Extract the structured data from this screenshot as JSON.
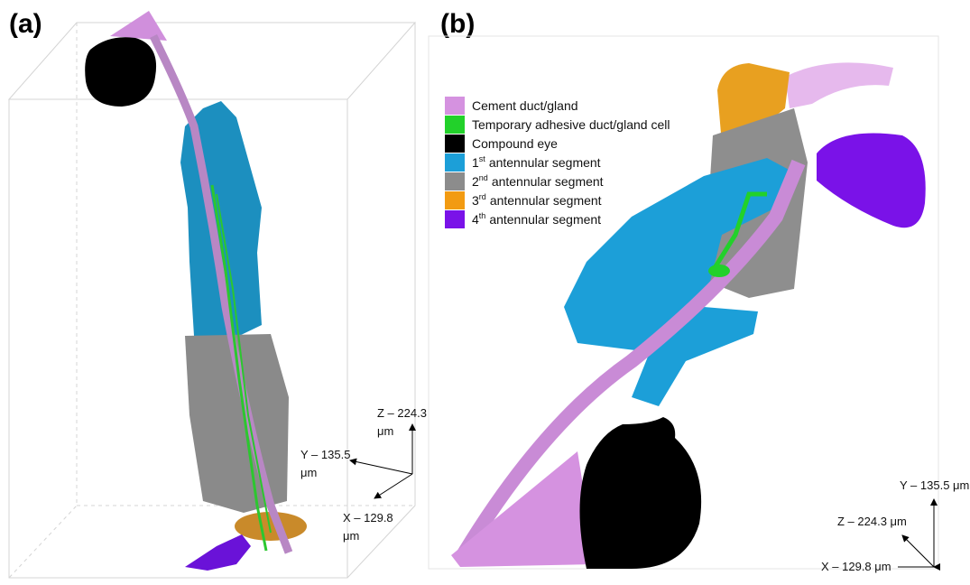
{
  "panels": [
    {
      "label": "(a)",
      "axes": {
        "z": [
          "Z – 224.3",
          "μm"
        ],
        "y": [
          "Y – 135.5",
          "μm"
        ],
        "x": [
          "X – 129.8",
          "μm"
        ]
      }
    },
    {
      "label": "(b)",
      "axes": {
        "y": "Y – 135.5 μm",
        "z": "Z – 224.3 μm",
        "x": "X – 129.8 μm"
      },
      "legend": [
        {
          "color": "#d592e0",
          "label": "Cement duct/gland"
        },
        {
          "color": "#22d12a",
          "label": "Temporary adhesive duct/gland cell"
        },
        {
          "color": "#000000",
          "label": "Compound eye"
        },
        {
          "color": "#1c9fd8",
          "prefix": "1",
          "sup": "st",
          "label": "antennular segment"
        },
        {
          "color": "#8c8c8c",
          "prefix": "2",
          "sup": "nd",
          "label": "antennular segment"
        },
        {
          "color": "#f29b12",
          "prefix": "3",
          "sup": "rd",
          "label": "antennular segment"
        },
        {
          "color": "#7a12e8",
          "prefix": "4",
          "sup": "th",
          "label": "antennular segment"
        }
      ]
    }
  ]
}
